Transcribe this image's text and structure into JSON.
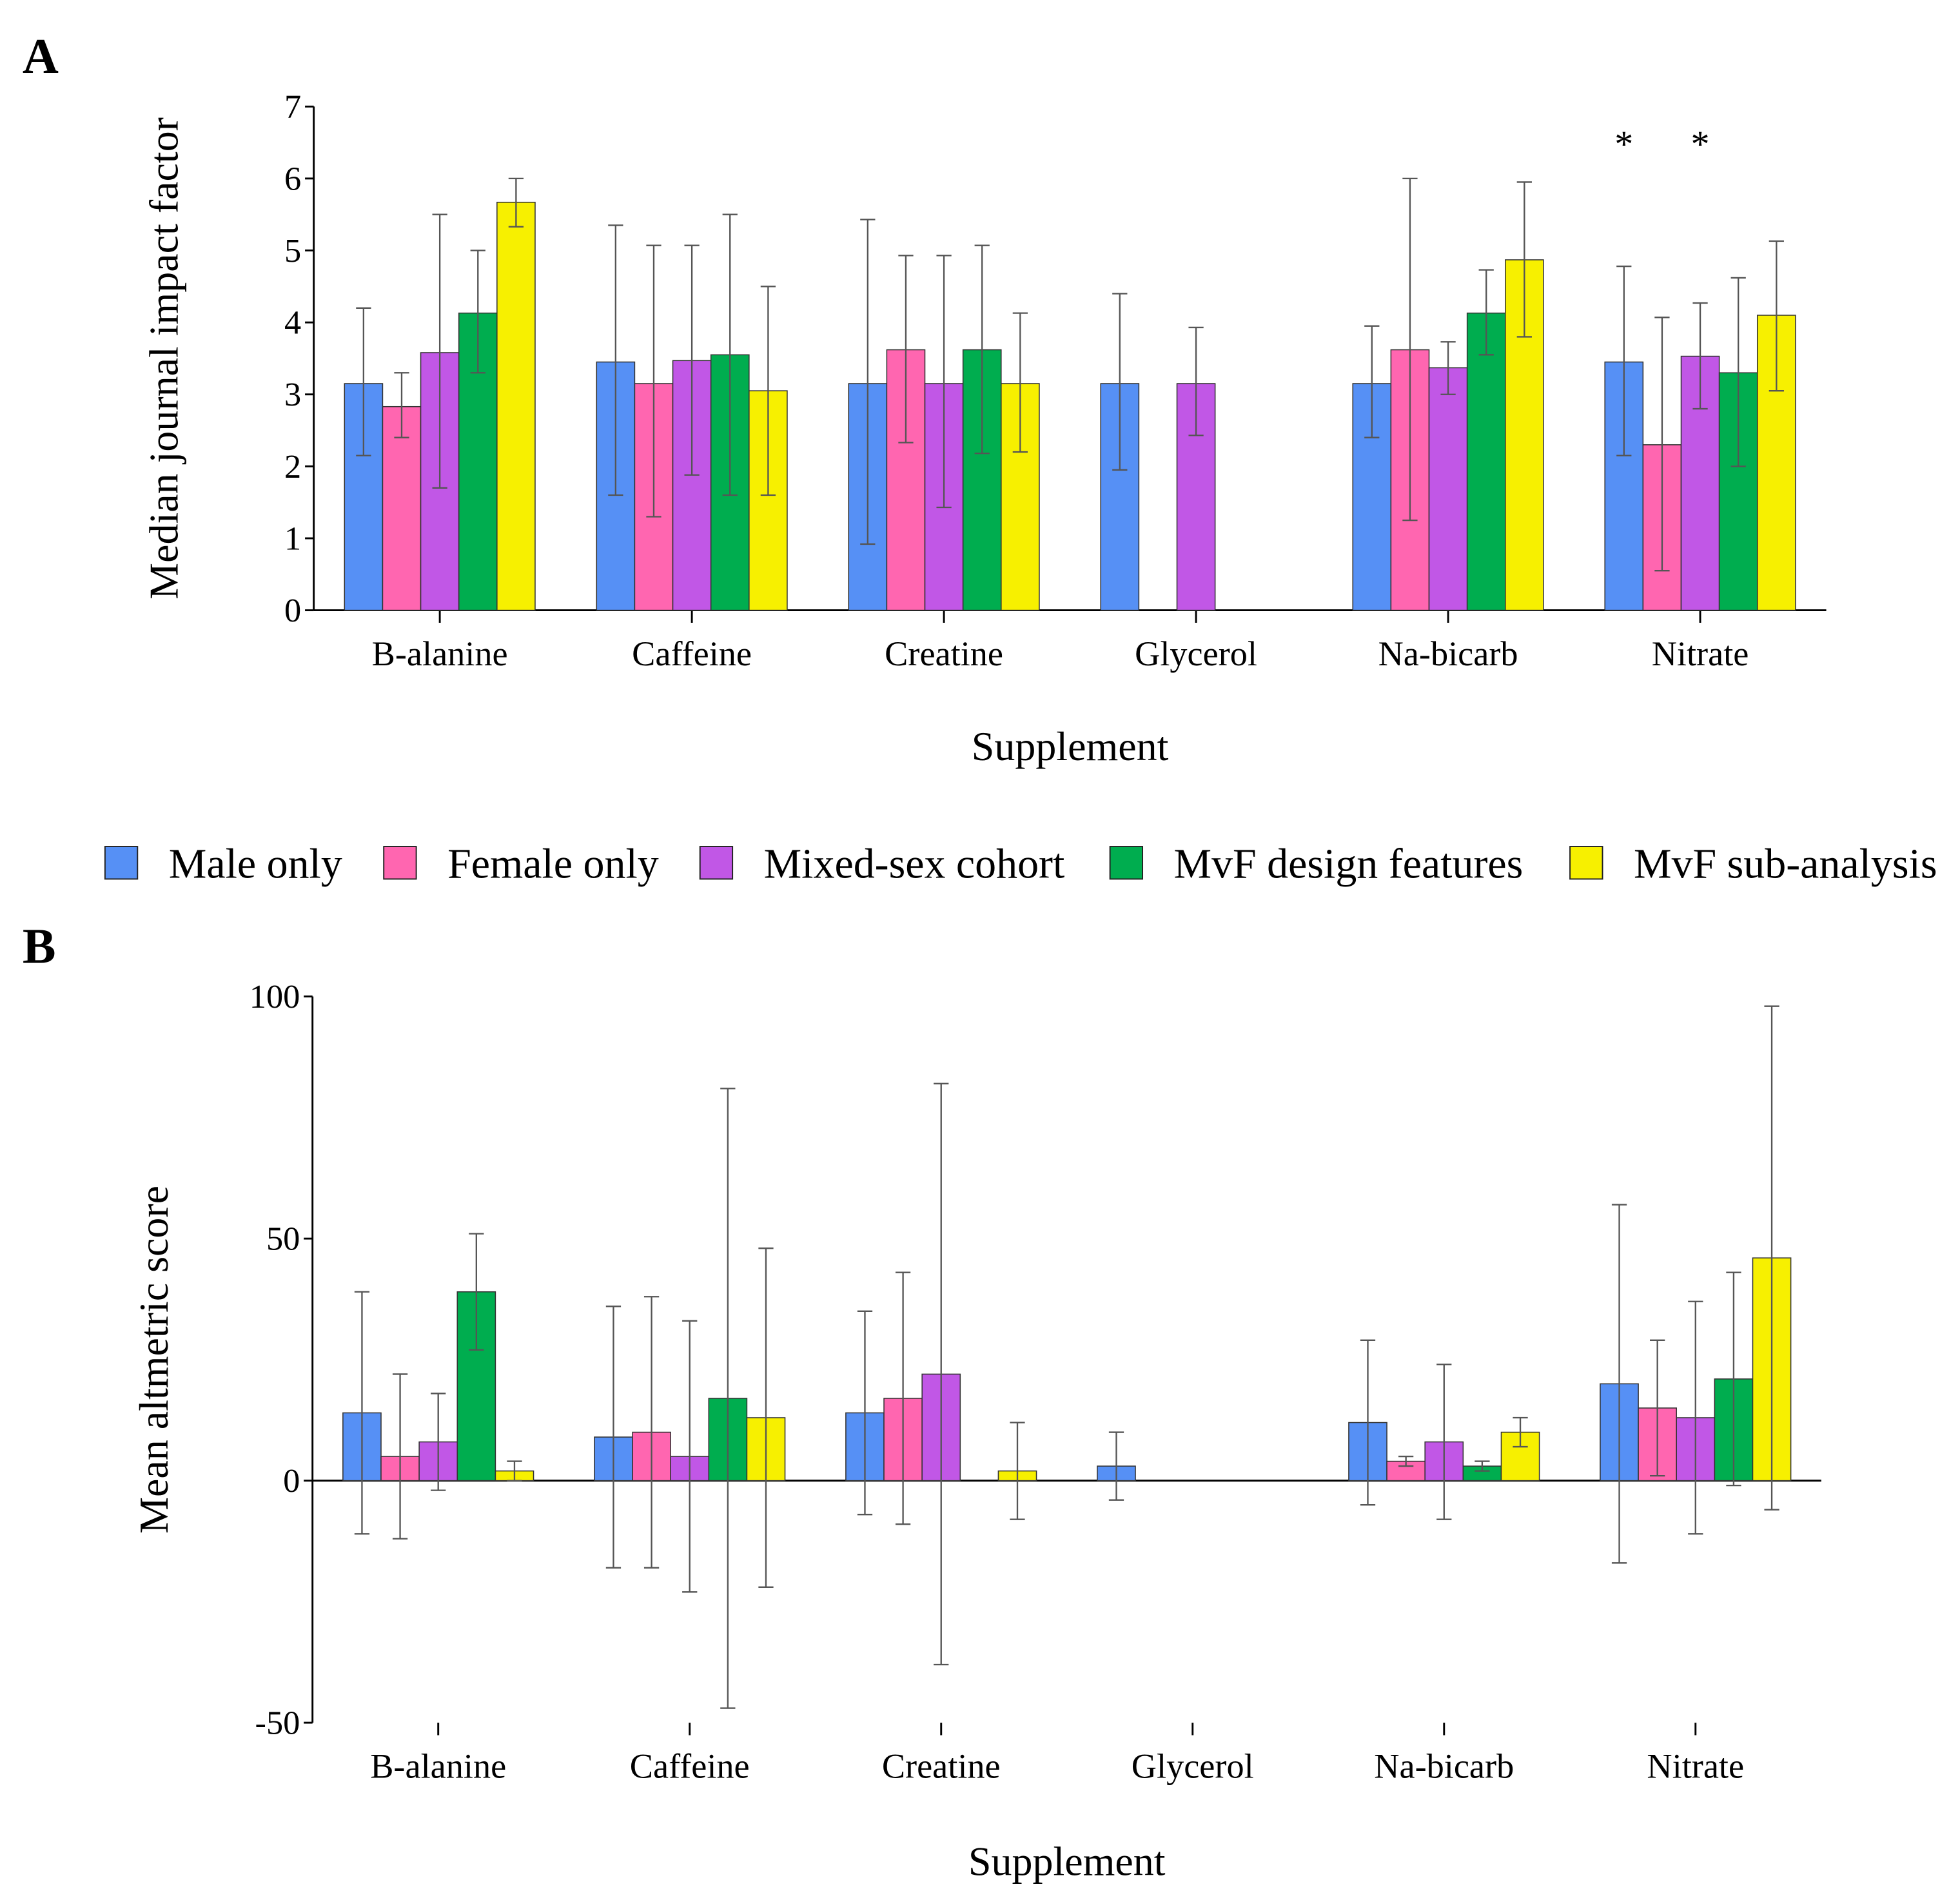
{
  "panel_labels": [
    "A",
    "B"
  ],
  "legend": {
    "items": [
      {
        "name": "Male only",
        "color": "#5690f5"
      },
      {
        "name": "Female only",
        "color": "#ff66b0"
      },
      {
        "name": "Mixed-sex cohort",
        "color": "#c157e6"
      },
      {
        "name": "MvF design features",
        "color": "#00ad4f"
      },
      {
        "name": "MvF sub-analysis",
        "color": "#f7f000"
      }
    ]
  },
  "chart_data": [
    {
      "type": "bar",
      "panel": "A",
      "xlabel": "Supplement",
      "ylabel": "Median journal impact factor",
      "ylim": [
        0,
        7
      ],
      "yticks": [
        0,
        1,
        2,
        3,
        4,
        5,
        6,
        7
      ],
      "categories": [
        "B-alanine",
        "Caffeine",
        "Creatine",
        "Glycerol",
        "Na-bicarb",
        "Nitrate"
      ],
      "annotations": [
        {
          "text": "*",
          "category": "Nitrate",
          "series": "Male only"
        },
        {
          "text": "*",
          "category": "Nitrate",
          "series": "Mixed-sex cohort"
        }
      ],
      "series": [
        {
          "name": "Male only",
          "values": [
            3.15,
            3.45,
            3.15,
            3.15,
            3.15,
            3.45
          ],
          "err_low": [
            2.15,
            1.6,
            0.92,
            1.95,
            2.4,
            2.15
          ],
          "err_high": [
            4.2,
            5.35,
            5.43,
            4.4,
            3.95,
            4.78
          ]
        },
        {
          "name": "Female only",
          "values": [
            2.83,
            3.15,
            3.62,
            null,
            3.62,
            2.3
          ],
          "err_low": [
            2.4,
            1.3,
            2.33,
            null,
            1.25,
            0.55
          ],
          "err_high": [
            3.3,
            5.07,
            4.93,
            null,
            6.0,
            4.07
          ]
        },
        {
          "name": "Mixed-sex cohort",
          "values": [
            3.58,
            3.47,
            3.15,
            3.15,
            3.37,
            3.53
          ],
          "err_low": [
            1.7,
            1.88,
            1.43,
            2.43,
            3.0,
            2.8
          ],
          "err_high": [
            5.5,
            5.07,
            4.93,
            3.93,
            3.73,
            4.27
          ]
        },
        {
          "name": "MvF design features",
          "values": [
            4.13,
            3.55,
            3.62,
            null,
            4.13,
            3.3
          ],
          "err_low": [
            3.3,
            1.6,
            2.18,
            null,
            3.55,
            2.0
          ],
          "err_high": [
            5.0,
            5.5,
            5.07,
            null,
            4.73,
            4.62
          ]
        },
        {
          "name": "MvF sub-analysis",
          "values": [
            5.67,
            3.05,
            3.15,
            null,
            4.87,
            4.1
          ],
          "err_low": [
            5.33,
            1.6,
            2.2,
            null,
            3.8,
            3.05
          ],
          "err_high": [
            6.0,
            4.5,
            4.13,
            null,
            5.95,
            5.13
          ]
        }
      ]
    },
    {
      "type": "bar",
      "panel": "B",
      "xlabel": "Supplement",
      "ylabel": "Mean altmetric score",
      "ylim": [
        -50,
        100
      ],
      "yticks": [
        -50,
        0,
        50,
        100
      ],
      "categories": [
        "B-alanine",
        "Caffeine",
        "Creatine",
        "Glycerol",
        "Na-bicarb",
        "Nitrate"
      ],
      "series": [
        {
          "name": "Male only",
          "values": [
            14,
            9,
            14,
            3,
            12,
            20
          ],
          "err_low": [
            -11,
            -18,
            -7,
            -4,
            -5,
            -17
          ],
          "err_high": [
            39,
            36,
            35,
            10,
            29,
            57
          ]
        },
        {
          "name": "Female only",
          "values": [
            5,
            10,
            17,
            null,
            4,
            15
          ],
          "err_low": [
            -12,
            -18,
            -9,
            null,
            3,
            1
          ],
          "err_high": [
            22,
            38,
            43,
            null,
            5,
            29
          ]
        },
        {
          "name": "Mixed-sex cohort",
          "values": [
            8,
            5,
            22,
            null,
            8,
            13
          ],
          "err_low": [
            -2,
            -23,
            -38,
            null,
            -8,
            -11
          ],
          "err_high": [
            18,
            33,
            82,
            null,
            24,
            37
          ]
        },
        {
          "name": "MvF design features",
          "values": [
            39,
            17,
            null,
            null,
            3,
            21
          ],
          "err_low": [
            27,
            -47,
            null,
            null,
            2,
            -1
          ],
          "err_high": [
            51,
            81,
            null,
            null,
            4,
            43
          ]
        },
        {
          "name": "MvF sub-analysis",
          "values": [
            2,
            13,
            2,
            null,
            10,
            46
          ],
          "err_low": [
            0,
            -22,
            -8,
            null,
            7,
            -6
          ],
          "err_high": [
            4,
            48,
            12,
            null,
            13,
            98
          ]
        }
      ]
    }
  ]
}
